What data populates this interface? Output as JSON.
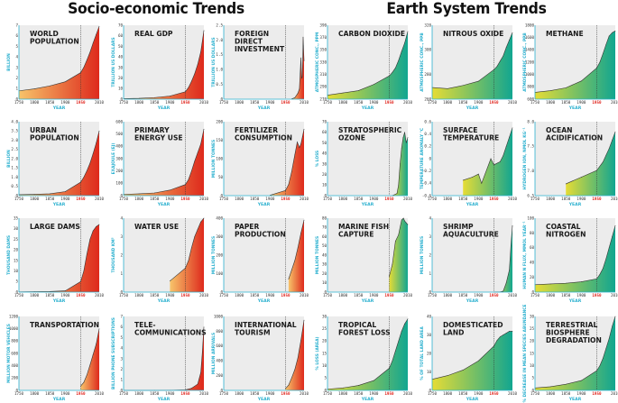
{
  "headings": {
    "left": "Socio-economic Trends",
    "right": "Earth System Trends"
  },
  "colors": {
    "socio_low": "#f7c46a",
    "socio_high": "#de2a1c",
    "earth_low": "#e6dc35",
    "earth_high": "#12a690",
    "bg": "#ececec",
    "axis": "#2ab0cf",
    "marker": "#e0241c"
  },
  "common": {
    "xlabel": "YEAR",
    "x_ticks": [
      "1750",
      "1800",
      "1850",
      "1900",
      "1950",
      "2010"
    ],
    "marker_year": 1950,
    "marker_label": "1950"
  },
  "chart_data": [
    {
      "id": "world-population",
      "type": "area",
      "group": "socio",
      "title_lines": [
        "WORLD",
        "POPULATION"
      ],
      "ylabel": "BILLION",
      "y_ticks": [
        "0",
        "1",
        "2",
        "3",
        "4",
        "5",
        "6",
        "7"
      ],
      "ylim": [
        0,
        7
      ],
      "x": [
        1750,
        1800,
        1850,
        1900,
        1950,
        1960,
        1970,
        1980,
        1990,
        2000,
        2010
      ],
      "y": [
        0.79,
        0.98,
        1.26,
        1.65,
        2.52,
        3.02,
        3.7,
        4.44,
        5.31,
        6.12,
        6.9
      ]
    },
    {
      "id": "real-gdp",
      "type": "area",
      "group": "socio",
      "title_lines": [
        "REAL GDP"
      ],
      "ylabel": "TRILLION US DOLLARS",
      "y_ticks": [
        "0",
        "10",
        "20",
        "30",
        "40",
        "50",
        "60",
        "70"
      ],
      "ylim": [
        0,
        70
      ],
      "x": [
        1750,
        1800,
        1850,
        1900,
        1950,
        1960,
        1970,
        1980,
        1990,
        2000,
        2010
      ],
      "y": [
        0.5,
        0.8,
        1.5,
        3,
        7,
        11,
        17,
        24,
        33,
        45,
        65
      ]
    },
    {
      "id": "foreign-direct-investment",
      "type": "area",
      "group": "socio",
      "title_lines": [
        "FOREIGN",
        "DIRECT",
        "INVESTMENT"
      ],
      "ylabel": "TRILLION US DOLLARS",
      "y_ticks": [
        "0",
        "0.5",
        "1.0",
        "1.5",
        "2.0",
        "2.5"
      ],
      "ylim": [
        0,
        2.5
      ],
      "x": [
        1970,
        1980,
        1990,
        1995,
        2000,
        2002,
        2004,
        2006,
        2007,
        2008,
        2010
      ],
      "y": [
        0.01,
        0.05,
        0.2,
        0.35,
        1.4,
        0.7,
        0.75,
        1.4,
        2.1,
        1.8,
        1.3
      ]
    },
    {
      "id": "urban-population",
      "type": "area",
      "group": "socio",
      "title_lines": [
        "URBAN",
        "POPULATION"
      ],
      "ylabel": "BILLION",
      "y_ticks": [
        "0",
        "0.5",
        "1.0",
        "1.5",
        "2.0",
        "2.5",
        "3.0",
        "3.5",
        "4.0"
      ],
      "ylim": [
        0,
        4
      ],
      "x": [
        1750,
        1800,
        1850,
        1900,
        1950,
        1960,
        1970,
        1980,
        1990,
        2000,
        2010
      ],
      "y": [
        0.05,
        0.07,
        0.1,
        0.22,
        0.73,
        1.0,
        1.35,
        1.75,
        2.27,
        2.84,
        3.5
      ]
    },
    {
      "id": "primary-energy-use",
      "type": "area",
      "group": "socio",
      "title_lines": [
        "PRIMARY",
        "ENERGY USE"
      ],
      "ylabel": "EXAJOULE (EJ)",
      "y_ticks": [
        "0",
        "100",
        "200",
        "300",
        "400",
        "500",
        "600"
      ],
      "ylim": [
        0,
        600
      ],
      "x": [
        1750,
        1800,
        1850,
        1900,
        1950,
        1960,
        1970,
        1980,
        1990,
        2000,
        2010
      ],
      "y": [
        10,
        15,
        22,
        45,
        90,
        130,
        200,
        280,
        350,
        420,
        540
      ]
    },
    {
      "id": "fertilizer-consumption",
      "type": "area",
      "group": "socio",
      "title_lines": [
        "FERTILIZER",
        "CONSUMPTION"
      ],
      "ylabel": "MILLION TONNES",
      "y_ticks": [
        "0",
        "50",
        "100",
        "150",
        "200"
      ],
      "ylim": [
        0,
        200
      ],
      "x": [
        1900,
        1950,
        1960,
        1970,
        1980,
        1988,
        1995,
        2000,
        2005,
        2010
      ],
      "y": [
        1,
        14,
        30,
        65,
        110,
        145,
        130,
        140,
        160,
        180
      ]
    },
    {
      "id": "large-dams",
      "type": "area",
      "group": "socio",
      "title_lines": [
        "LARGE DAMS"
      ],
      "ylabel": "THOUSAND DAMS",
      "y_ticks": [
        "0",
        "5",
        "10",
        "15",
        "20",
        "25",
        "30",
        "35"
      ],
      "ylim": [
        0,
        35
      ],
      "x": [
        1750,
        1800,
        1850,
        1900,
        1950,
        1960,
        1970,
        1980,
        1990,
        2000,
        2010
      ],
      "y": [
        0.1,
        0.2,
        0.3,
        0.6,
        5,
        10,
        18,
        25,
        29,
        31,
        32
      ]
    },
    {
      "id": "water-use",
      "type": "area",
      "group": "socio",
      "title_lines": [
        "WATER USE"
      ],
      "ylabel": "THOUSAND KM³",
      "y_ticks": [
        "0",
        "1",
        "2",
        "3",
        "4"
      ],
      "ylim": [
        0,
        4
      ],
      "x": [
        1900,
        1950,
        1960,
        1970,
        1980,
        1990,
        2000,
        2010
      ],
      "y": [
        0.6,
        1.3,
        1.7,
        2.4,
        3.0,
        3.4,
        3.8,
        4.0
      ]
    },
    {
      "id": "paper-production",
      "type": "area",
      "group": "socio",
      "title_lines": [
        "PAPER",
        "PRODUCTION"
      ],
      "ylabel": "MILLION TONNES",
      "y_ticks": [
        "0",
        "100",
        "200",
        "300",
        "400"
      ],
      "ylim": [
        0,
        400
      ],
      "x": [
        1960,
        1970,
        1980,
        1990,
        2000,
        2010
      ],
      "y": [
        70,
        120,
        170,
        240,
        320,
        390
      ]
    },
    {
      "id": "transportation",
      "type": "area",
      "group": "socio",
      "title_lines": [
        "TRANSPORTATION"
      ],
      "ylabel": "MILLION MOTOR VEHICLES",
      "y_ticks": [
        "0",
        "200",
        "400",
        "600",
        "800",
        "1000",
        "1200"
      ],
      "ylim": [
        0,
        1200
      ],
      "x": [
        1950,
        1960,
        1970,
        1980,
        1990,
        2000,
        2010
      ],
      "y": [
        70,
        130,
        250,
        410,
        580,
        750,
        1000
      ]
    },
    {
      "id": "telecommunications",
      "type": "area",
      "group": "socio",
      "title_lines": [
        "TELE-",
        "COMMUNICATIONS"
      ],
      "ylabel": "BILLION PHONE SUBSCRIPTIONS",
      "y_ticks": [
        "0",
        "1",
        "2",
        "3",
        "4",
        "5",
        "6",
        "7"
      ],
      "ylim": [
        0,
        7
      ],
      "x": [
        1750,
        1850,
        1900,
        1950,
        1970,
        1980,
        1990,
        2000,
        2005,
        2010
      ],
      "y": [
        0,
        0,
        0.01,
        0.05,
        0.2,
        0.4,
        0.6,
        1.7,
        3.6,
        6.0
      ]
    },
    {
      "id": "international-tourism",
      "type": "area",
      "group": "socio",
      "title_lines": [
        "INTERNATIONAL",
        "TOURISM"
      ],
      "ylabel": "MILLION ARRIVALS",
      "y_ticks": [
        "0",
        "200",
        "400",
        "600",
        "800",
        "1000"
      ],
      "ylim": [
        0,
        1000
      ],
      "x": [
        1950,
        1960,
        1970,
        1980,
        1990,
        2000,
        2010
      ],
      "y": [
        25,
        70,
        170,
        280,
        440,
        680,
        950
      ]
    },
    {
      "id": "carbon-dioxide",
      "type": "area",
      "group": "earth",
      "title_lines": [
        "CARBON DIOXIDE"
      ],
      "ylabel": "ATMOSPHERIC CONC., PPM",
      "y_ticks": [
        "270",
        "290",
        "310",
        "330",
        "350",
        "370",
        "390"
      ],
      "ylim": [
        270,
        400
      ],
      "x": [
        1750,
        1800,
        1850,
        1900,
        1950,
        1960,
        1970,
        1980,
        1990,
        2000,
        2010
      ],
      "y": [
        277,
        281,
        285,
        296,
        311,
        317,
        325,
        338,
        354,
        369,
        389
      ]
    },
    {
      "id": "nitrous-oxide",
      "type": "area",
      "group": "earth",
      "title_lines": [
        "NITROUS OXIDE"
      ],
      "ylabel": "ATMOSPHERIC CONC., PPB",
      "y_ticks": [
        "260",
        "280",
        "300",
        "320"
      ],
      "ylim": [
        260,
        330
      ],
      "x": [
        1750,
        1800,
        1850,
        1900,
        1950,
        1960,
        1970,
        1980,
        1990,
        2000,
        2010
      ],
      "y": [
        271,
        270,
        273,
        277,
        288,
        291,
        296,
        301,
        309,
        316,
        323
      ]
    },
    {
      "id": "methane",
      "type": "area",
      "group": "earth",
      "title_lines": [
        "METHANE"
      ],
      "ylabel": "ATMOSPHERIC CONC., PPB",
      "y_ticks": [
        "600",
        "800",
        "1000",
        "1200",
        "1400",
        "1600",
        "1800"
      ],
      "ylim": [
        600,
        1900
      ],
      "x": [
        1750,
        1800,
        1850,
        1900,
        1950,
        1960,
        1970,
        1980,
        1990,
        2000,
        2010
      ],
      "y": [
        720,
        750,
        800,
        920,
        1150,
        1250,
        1400,
        1560,
        1710,
        1770,
        1800
      ]
    },
    {
      "id": "stratospheric-ozone",
      "type": "area",
      "group": "earth",
      "title_lines": [
        "STRATOSPHERIC",
        "OZONE"
      ],
      "ylabel": "% LOSS",
      "y_ticks": [
        "0",
        "10",
        "20",
        "30",
        "40",
        "50",
        "60",
        "70"
      ],
      "ylim": [
        0,
        70
      ],
      "x": [
        1960,
        1975,
        1980,
        1985,
        1990,
        1995,
        2000,
        2005,
        2010
      ],
      "y": [
        0,
        2,
        10,
        30,
        45,
        55,
        60,
        50,
        55
      ]
    },
    {
      "id": "surface-temperature",
      "type": "area",
      "group": "earth",
      "title_lines": [
        "SURFACE",
        "TEMPERATURE"
      ],
      "ylabel": "TEMPERATURE ANOMALY °C",
      "y_ticks": [
        "-0.6",
        "-0.4",
        "-0.2",
        "0",
        "0.2",
        "0.4",
        "0.6"
      ],
      "ylim": [
        -0.6,
        0.6
      ],
      "x": [
        1850,
        1880,
        1900,
        1910,
        1940,
        1950,
        1970,
        1980,
        1990,
        2000,
        2010
      ],
      "y": [
        -0.35,
        -0.3,
        -0.25,
        -0.4,
        0.0,
        -0.1,
        -0.05,
        0.05,
        0.2,
        0.35,
        0.5
      ]
    },
    {
      "id": "ocean-acidification",
      "type": "area",
      "group": "earth",
      "title_lines": [
        "OCEAN",
        "ACIDIFICATION"
      ],
      "ylabel": "HYDROGEN ION, NMOL KG⁻¹",
      "y_ticks": [
        "6.5",
        "7.0",
        "7.5",
        "8.0"
      ],
      "ylim": [
        6.3,
        8.5
      ],
      "x": [
        1850,
        1900,
        1950,
        1970,
        1980,
        1990,
        2000,
        2010
      ],
      "y": [
        6.65,
        6.85,
        7.05,
        7.3,
        7.5,
        7.7,
        7.95,
        8.2
      ]
    },
    {
      "id": "marine-fish-capture",
      "type": "area",
      "group": "earth",
      "title_lines": [
        "MARINE FISH",
        "CAPTURE"
      ],
      "ylabel": "MILLION TONNES",
      "y_ticks": [
        "0",
        "10",
        "20",
        "30",
        "40",
        "50",
        "60",
        "70",
        "80"
      ],
      "ylim": [
        0,
        80
      ],
      "x": [
        1950,
        1960,
        1970,
        1980,
        1990,
        1996,
        2000,
        2005,
        2010
      ],
      "y": [
        17,
        30,
        55,
        62,
        78,
        80,
        77,
        75,
        73
      ]
    },
    {
      "id": "shrimp-aquaculture",
      "type": "area",
      "group": "earth",
      "title_lines": [
        "SHRIMP",
        "AQUACULTURE"
      ],
      "ylabel": "MILLION TONNES",
      "y_ticks": [
        "0",
        "1",
        "2",
        "3",
        "4"
      ],
      "ylim": [
        0,
        4
      ],
      "x": [
        1950,
        1970,
        1980,
        1990,
        2000,
        2005,
        2010
      ],
      "y": [
        0,
        0.01,
        0.05,
        0.5,
        1.2,
        2.5,
        3.6
      ]
    },
    {
      "id": "coastal-nitrogen",
      "type": "area",
      "group": "earth",
      "title_lines": [
        "COASTAL",
        "NITROGEN"
      ],
      "ylabel": "HUMAN N FLUX, MMOL YEAR⁻¹",
      "y_ticks": [
        "0",
        "20",
        "40",
        "60",
        "80",
        "100"
      ],
      "ylim": [
        0,
        100
      ],
      "x": [
        1750,
        1800,
        1850,
        1900,
        1950,
        1960,
        1970,
        1980,
        1990,
        2000,
        2010
      ],
      "y": [
        10,
        11,
        12,
        14,
        18,
        24,
        32,
        45,
        60,
        75,
        90
      ]
    },
    {
      "id": "tropical-forest-loss",
      "type": "area",
      "group": "earth",
      "title_lines": [
        "TROPICAL",
        "FOREST LOSS"
      ],
      "ylabel": "% LOSS (AREA)",
      "y_ticks": [
        "0",
        "5",
        "10",
        "15",
        "20",
        "25",
        "30"
      ],
      "ylim": [
        0,
        30
      ],
      "x": [
        1750,
        1800,
        1850,
        1900,
        1950,
        1960,
        1970,
        1980,
        1990,
        2000,
        2010
      ],
      "y": [
        0.5,
        1,
        2,
        4,
        9,
        12,
        16,
        20,
        24,
        27,
        29
      ]
    },
    {
      "id": "domesticated-land",
      "type": "area",
      "group": "earth",
      "title_lines": [
        "DOMESTICATED",
        "LAND"
      ],
      "ylabel": "% OF TOTAL LAND AREA",
      "y_ticks": [
        "0",
        "10",
        "20",
        "30",
        "40"
      ],
      "ylim": [
        0,
        40
      ],
      "x": [
        1750,
        1800,
        1850,
        1900,
        1950,
        1960,
        1970,
        1980,
        1990,
        2000,
        2010
      ],
      "y": [
        6,
        8,
        11,
        16,
        24,
        27,
        29,
        30,
        31,
        32,
        32
      ]
    },
    {
      "id": "terrestrial-biosphere-degradation",
      "type": "area",
      "group": "earth",
      "title_lines": [
        "TERRESTRIAL",
        "BIOSPHERE",
        "DEGRADATION"
      ],
      "ylabel": "% DECREASE IN MEAN SPECIES ABUNDANCE",
      "y_ticks": [
        "0",
        "5",
        "10",
        "15",
        "20",
        "25",
        "30"
      ],
      "ylim": [
        0,
        30
      ],
      "x": [
        1750,
        1800,
        1850,
        1900,
        1950,
        1960,
        1970,
        1980,
        1990,
        2000,
        2010
      ],
      "y": [
        1,
        1.5,
        2.5,
        4,
        8,
        10,
        13,
        17,
        21,
        26,
        30
      ]
    }
  ]
}
